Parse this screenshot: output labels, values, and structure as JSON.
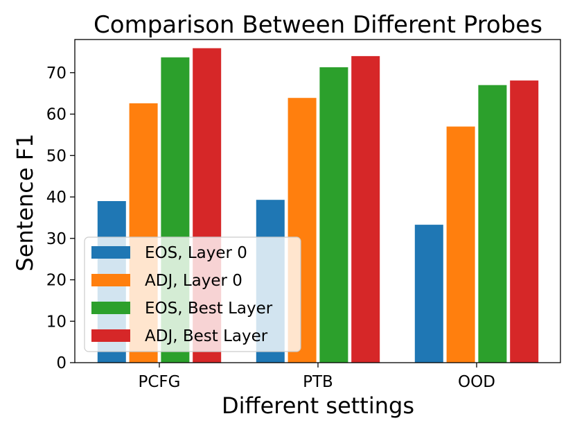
{
  "chart_data": {
    "type": "bar",
    "title": "Comparison Between Different Probes",
    "xlabel": "Different settings",
    "ylabel": "Sentence F1",
    "categories": [
      "PCFG",
      "PTB",
      "OOD"
    ],
    "ylim": [
      0,
      78
    ],
    "yticks": [
      0,
      10,
      20,
      30,
      40,
      50,
      60,
      70
    ],
    "grid": false,
    "legend_position": "lower-left",
    "series": [
      {
        "name": "EOS, Layer 0",
        "color": "#1f77b4",
        "values": [
          39.0,
          39.3,
          33.3
        ]
      },
      {
        "name": "ADJ, Layer 0",
        "color": "#ff7f0e",
        "values": [
          62.6,
          63.9,
          57.0
        ]
      },
      {
        "name": "EOS, Best Layer",
        "color": "#2ca02c",
        "values": [
          73.7,
          71.3,
          67.0
        ]
      },
      {
        "name": "ADJ, Best Layer",
        "color": "#d62728",
        "values": [
          75.9,
          74.0,
          68.1
        ]
      }
    ]
  }
}
